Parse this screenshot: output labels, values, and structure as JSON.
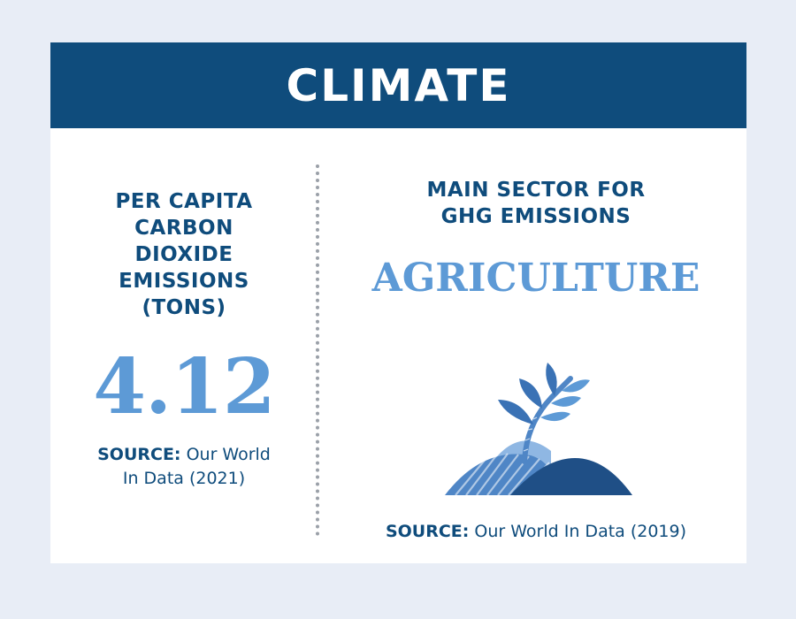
{
  "header": {
    "title": "CLIMATE"
  },
  "left_metric": {
    "title": "PER CAPITA CARBON DIOXIDE EMISSIONS (TONS)",
    "value": "4.12",
    "source_label": "SOURCE:",
    "source_text": " Our World In Data (2021)"
  },
  "right_metric": {
    "title": "MAIN SECTOR FOR GHG EMISSIONS",
    "value": "AGRICULTURE",
    "source_label": "SOURCE:",
    "source_text": " Our World In Data (2019)",
    "icon": "wheat-plant-icon"
  },
  "colors": {
    "header_bg": "#0f4c7c",
    "accent_light": "#5d9ad6",
    "text_dark": "#0f4c7c",
    "page_bg": "#e8edf6"
  }
}
